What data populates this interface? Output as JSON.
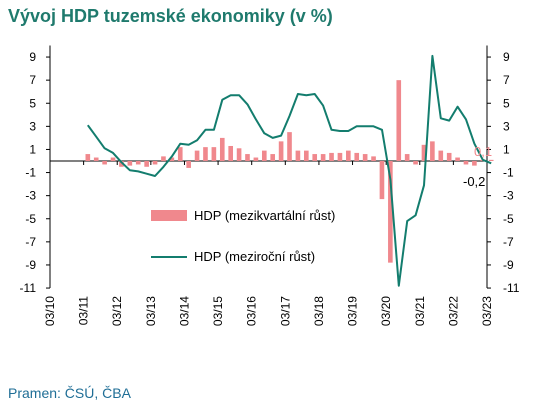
{
  "title": "Vývoj HDP tuzemské ekonomiky (v %)",
  "source": "Pramen: ČSÚ, ČBA",
  "colors": {
    "title": "#1f7a6d",
    "bar": "#f0888d",
    "line": "#137d6e",
    "source": "#1f6e96"
  },
  "chart_data": {
    "type": "bar+line",
    "title": "Vývoj HDP tuzemské ekonomiky (v %)",
    "x_tick_labels": [
      "03/10",
      "03/11",
      "03/12",
      "03/13",
      "03/14",
      "03/15",
      "03/16",
      "03/17",
      "03/18",
      "03/19",
      "03/20",
      "03/21",
      "03/22",
      "03/23"
    ],
    "y_ticks": [
      9,
      7,
      5,
      3,
      1,
      -1,
      -3,
      -5,
      -7,
      -9,
      -11
    ],
    "ylim": [
      -11,
      10
    ],
    "axes": "left and right, identical scale",
    "legend": [
      {
        "label": "HDP (mezikvartální růst)",
        "marker": "bar"
      },
      {
        "label": "HDP (meziroční růst)",
        "marker": "line"
      }
    ],
    "annotations": {
      "last_bar": "0,1",
      "last_line": "-0,2"
    },
    "x": [
      "Q1 2011",
      "Q2 2011",
      "Q3 2011",
      "Q4 2011",
      "Q1 2012",
      "Q2 2012",
      "Q3 2012",
      "Q4 2012",
      "Q1 2013",
      "Q2 2013",
      "Q3 2013",
      "Q4 2013",
      "Q1 2014",
      "Q2 2014",
      "Q3 2014",
      "Q4 2014",
      "Q1 2015",
      "Q2 2015",
      "Q3 2015",
      "Q4 2015",
      "Q1 2016",
      "Q2 2016",
      "Q3 2016",
      "Q4 2016",
      "Q1 2017",
      "Q2 2017",
      "Q3 2017",
      "Q4 2017",
      "Q1 2018",
      "Q2 2018",
      "Q3 2018",
      "Q4 2018",
      "Q1 2019",
      "Q2 2019",
      "Q3 2019",
      "Q4 2019",
      "Q1 2020",
      "Q2 2020",
      "Q3 2020",
      "Q4 2020",
      "Q1 2021",
      "Q2 2021",
      "Q3 2021",
      "Q4 2021",
      "Q1 2022",
      "Q2 2022",
      "Q3 2022",
      "Q4 2022",
      "Q1 2023"
    ],
    "series": [
      {
        "name": "HDP (mezikvartální růst)",
        "type": "bar",
        "values": [
          0.6,
          0.3,
          -0.3,
          0.3,
          -0.5,
          -0.4,
          -0.3,
          -0.5,
          -0.3,
          0.4,
          0.3,
          1.2,
          -0.6,
          0.9,
          1.2,
          1.2,
          2.0,
          1.3,
          1.1,
          0.6,
          0.3,
          0.9,
          0.6,
          1.7,
          2.5,
          0.9,
          0.9,
          0.6,
          0.6,
          0.7,
          0.7,
          0.9,
          0.7,
          0.6,
          0.4,
          -3.3,
          -8.8,
          7.0,
          0.6,
          -0.3,
          1.4,
          1.7,
          0.9,
          0.7,
          0.3,
          -0.3,
          -0.4,
          0.1,
          0.1
        ]
      },
      {
        "name": "HDP (meziroční růst)",
        "type": "line",
        "values": [
          3.1,
          2.1,
          1.1,
          0.7,
          -0.1,
          -0.8,
          -0.9,
          -1.1,
          -1.3,
          -0.5,
          0.4,
          1.5,
          1.4,
          1.8,
          2.7,
          2.7,
          5.3,
          5.7,
          5.7,
          4.9,
          3.6,
          2.4,
          2.0,
          2.2,
          3.9,
          5.8,
          5.7,
          5.8,
          4.8,
          2.7,
          2.6,
          2.6,
          3.0,
          3.0,
          3.0,
          2.7,
          -1.6,
          -10.8,
          -5.2,
          -4.7,
          -2.1,
          9.1,
          3.7,
          3.5,
          4.7,
          3.6,
          1.5,
          0.1,
          -0.2
        ]
      }
    ]
  }
}
